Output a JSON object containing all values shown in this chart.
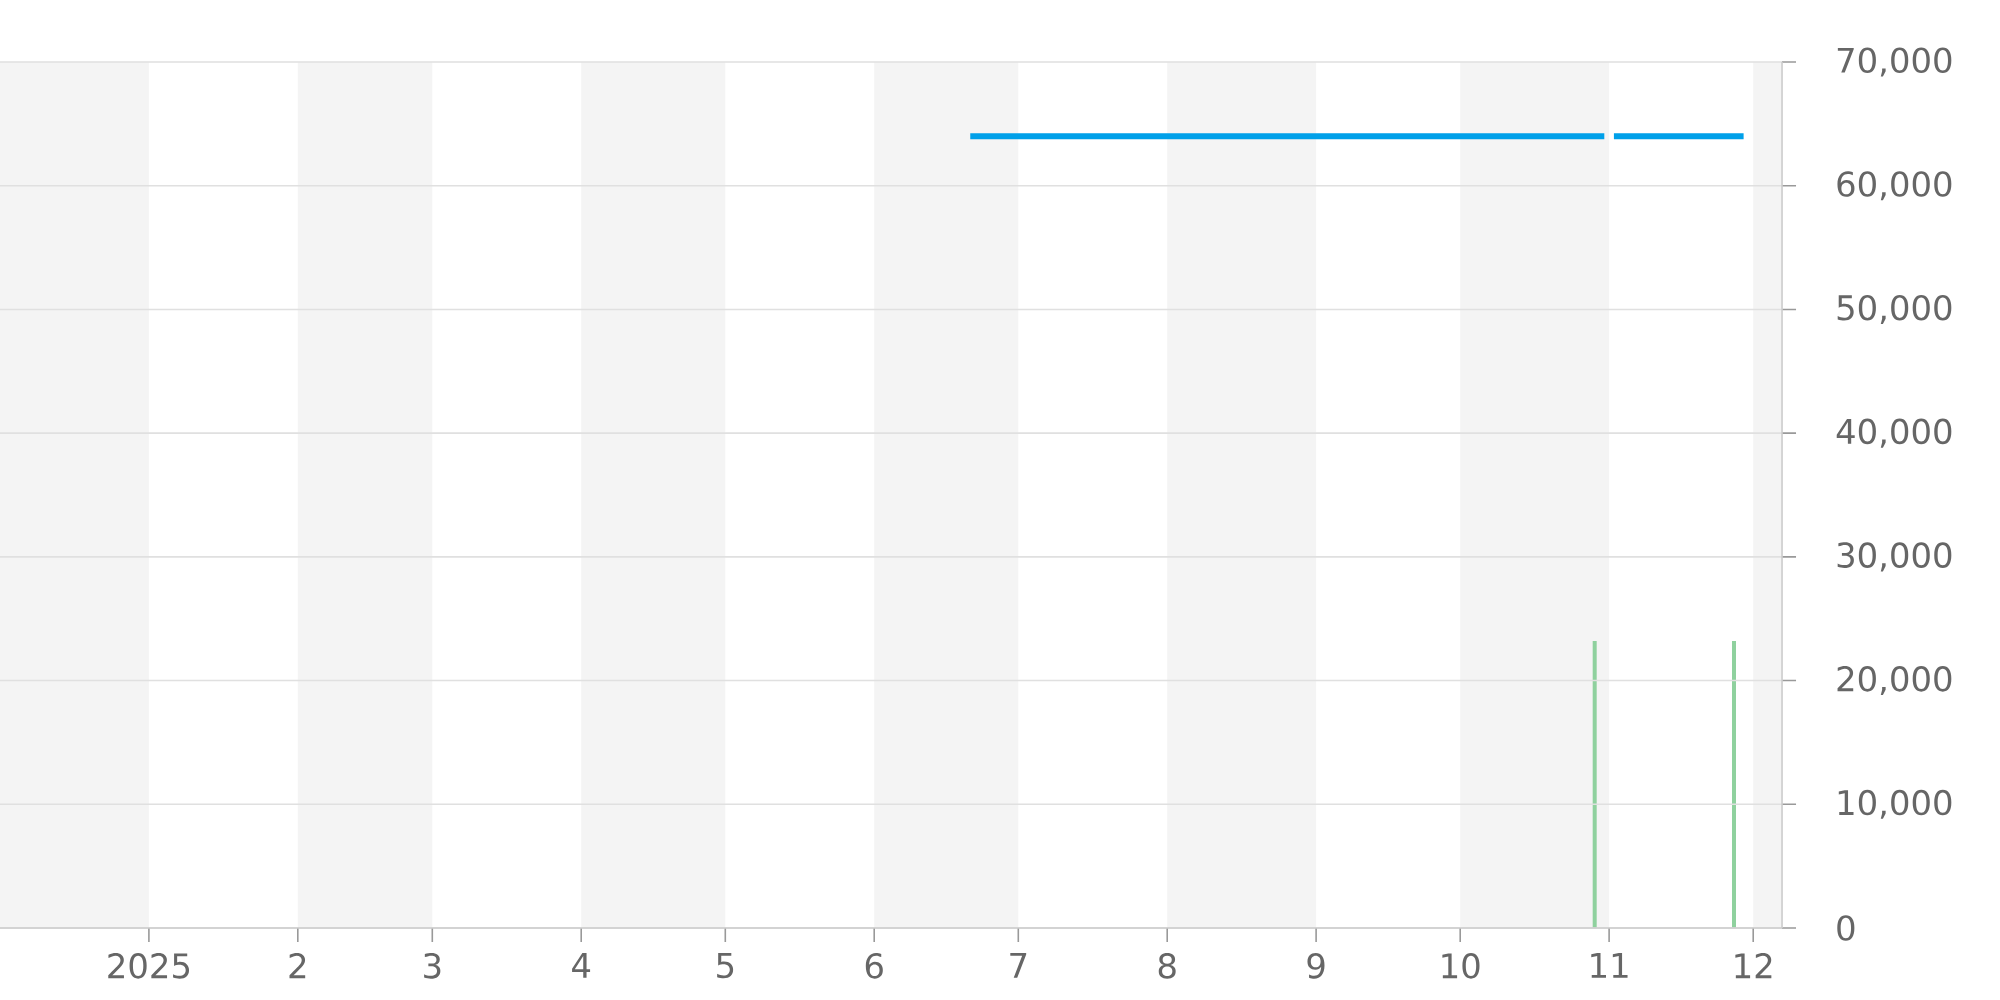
{
  "chart_data": {
    "type": "line",
    "xlim": [
      "2024-12-01",
      "2025-12-07"
    ],
    "xticks": [
      {
        "value": "2025-01-01",
        "label": "2025"
      },
      {
        "value": "2025-02-01",
        "label": "2"
      },
      {
        "value": "2025-03-01",
        "label": "3"
      },
      {
        "value": "2025-04-01",
        "label": "4"
      },
      {
        "value": "2025-05-01",
        "label": "5"
      },
      {
        "value": "2025-06-01",
        "label": "6"
      },
      {
        "value": "2025-07-01",
        "label": "7"
      },
      {
        "value": "2025-08-01",
        "label": "8"
      },
      {
        "value": "2025-09-01",
        "label": "9"
      },
      {
        "value": "2025-10-01",
        "label": "10"
      },
      {
        "value": "2025-11-01",
        "label": "11"
      },
      {
        "value": "2025-12-01",
        "label": "12"
      }
    ],
    "ylim": [
      0,
      70000
    ],
    "yticks": [
      0,
      {
        "value": 10000,
        "label": "10,000"
      },
      {
        "value": 20000,
        "label": "20,000"
      },
      {
        "value": 30000,
        "label": "30,000"
      },
      {
        "value": 40000,
        "label": "40,000"
      },
      {
        "value": 50000,
        "label": "50,000"
      },
      {
        "value": 60000,
        "label": "60,000"
      },
      {
        "value": 70000,
        "label": "70,000"
      }
    ],
    "grid": "y",
    "bands": [
      {
        "axis": "x",
        "from": "2024-12-01",
        "to": "2025-01-01",
        "color": "#f4f4f4"
      },
      {
        "axis": "x",
        "from": "2025-02-01",
        "to": "2025-03-01",
        "color": "#f4f4f4"
      },
      {
        "axis": "x",
        "from": "2025-04-01",
        "to": "2025-05-01",
        "color": "#f4f4f4"
      },
      {
        "axis": "x",
        "from": "2025-06-01",
        "to": "2025-07-01",
        "color": "#f4f4f4"
      },
      {
        "axis": "x",
        "from": "2025-08-01",
        "to": "2025-09-01",
        "color": "#f4f4f4"
      },
      {
        "axis": "x",
        "from": "2025-10-01",
        "to": "2025-11-01",
        "color": "#f4f4f4"
      },
      {
        "axis": "x",
        "from": "2025-12-01",
        "to": "2025-12-07",
        "color": "#f4f4f4"
      }
    ],
    "series": [
      {
        "type": "bar",
        "color": "#8fd19e",
        "x": [
          "2025-10-29",
          "2025-11-27"
        ],
        "values": [
          23200,
          23200
        ]
      },
      {
        "color": "#00a0e9",
        "x": [
          "2025-06-21",
          "2025-10-31",
          "2025-11-01",
          "2025-11-02",
          "2025-11-29"
        ],
        "values": [
          64000,
          64000,
          null,
          64000,
          64000
        ]
      }
    ]
  }
}
